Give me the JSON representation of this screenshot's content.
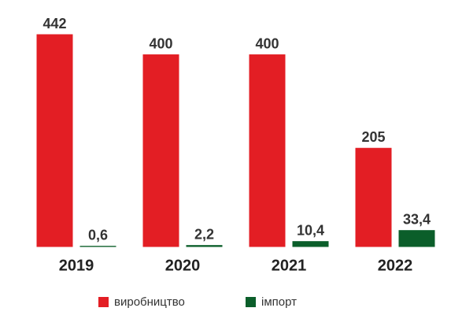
{
  "chart_data": {
    "type": "bar",
    "categories": [
      "2019",
      "2020",
      "2021",
      "2022"
    ],
    "series": [
      {
        "name": "виробництво",
        "color": "#e31e24",
        "values": [
          442,
          400,
          400,
          205
        ]
      },
      {
        "name": "імпорт",
        "color": "#0b5e2a",
        "values": [
          0.6,
          2.2,
          10.4,
          33.4
        ],
        "value_labels": [
          "0,6",
          "2,2",
          "10,4",
          "33,4"
        ]
      }
    ]
  }
}
